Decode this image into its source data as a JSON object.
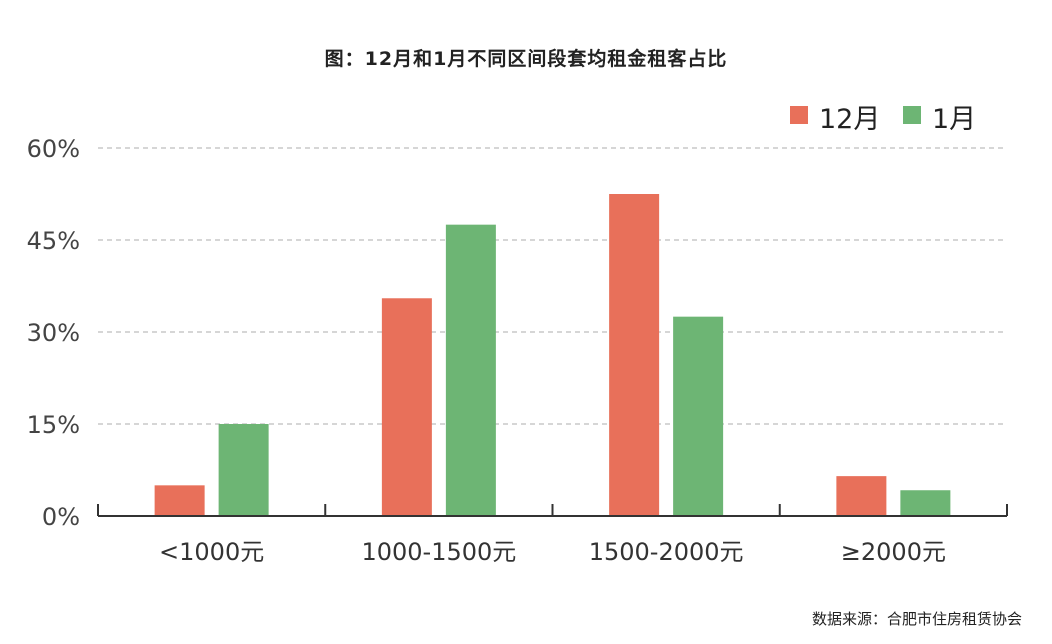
{
  "chart_data": {
    "type": "bar",
    "title": "图：12月和1月不同区间段套均租金租客占比",
    "categories": [
      "<1000元",
      "1000-1500元",
      "1500-2000元",
      "≥2000元"
    ],
    "series": [
      {
        "name": "12月",
        "values": [
          5,
          35.5,
          52.5,
          6.5
        ],
        "color": "#e8705a"
      },
      {
        "name": "1月",
        "values": [
          15,
          47.5,
          32.5,
          4.2
        ],
        "color": "#6db574"
      }
    ],
    "y_ticks": [
      "0%",
      "15%",
      "30%",
      "45%",
      "60%"
    ],
    "ylim": [
      0,
      60
    ],
    "xlabel": "",
    "ylabel": "",
    "grid": true,
    "legend_position": "top-right"
  },
  "source": "数据来源：合肥市住房租赁协会"
}
